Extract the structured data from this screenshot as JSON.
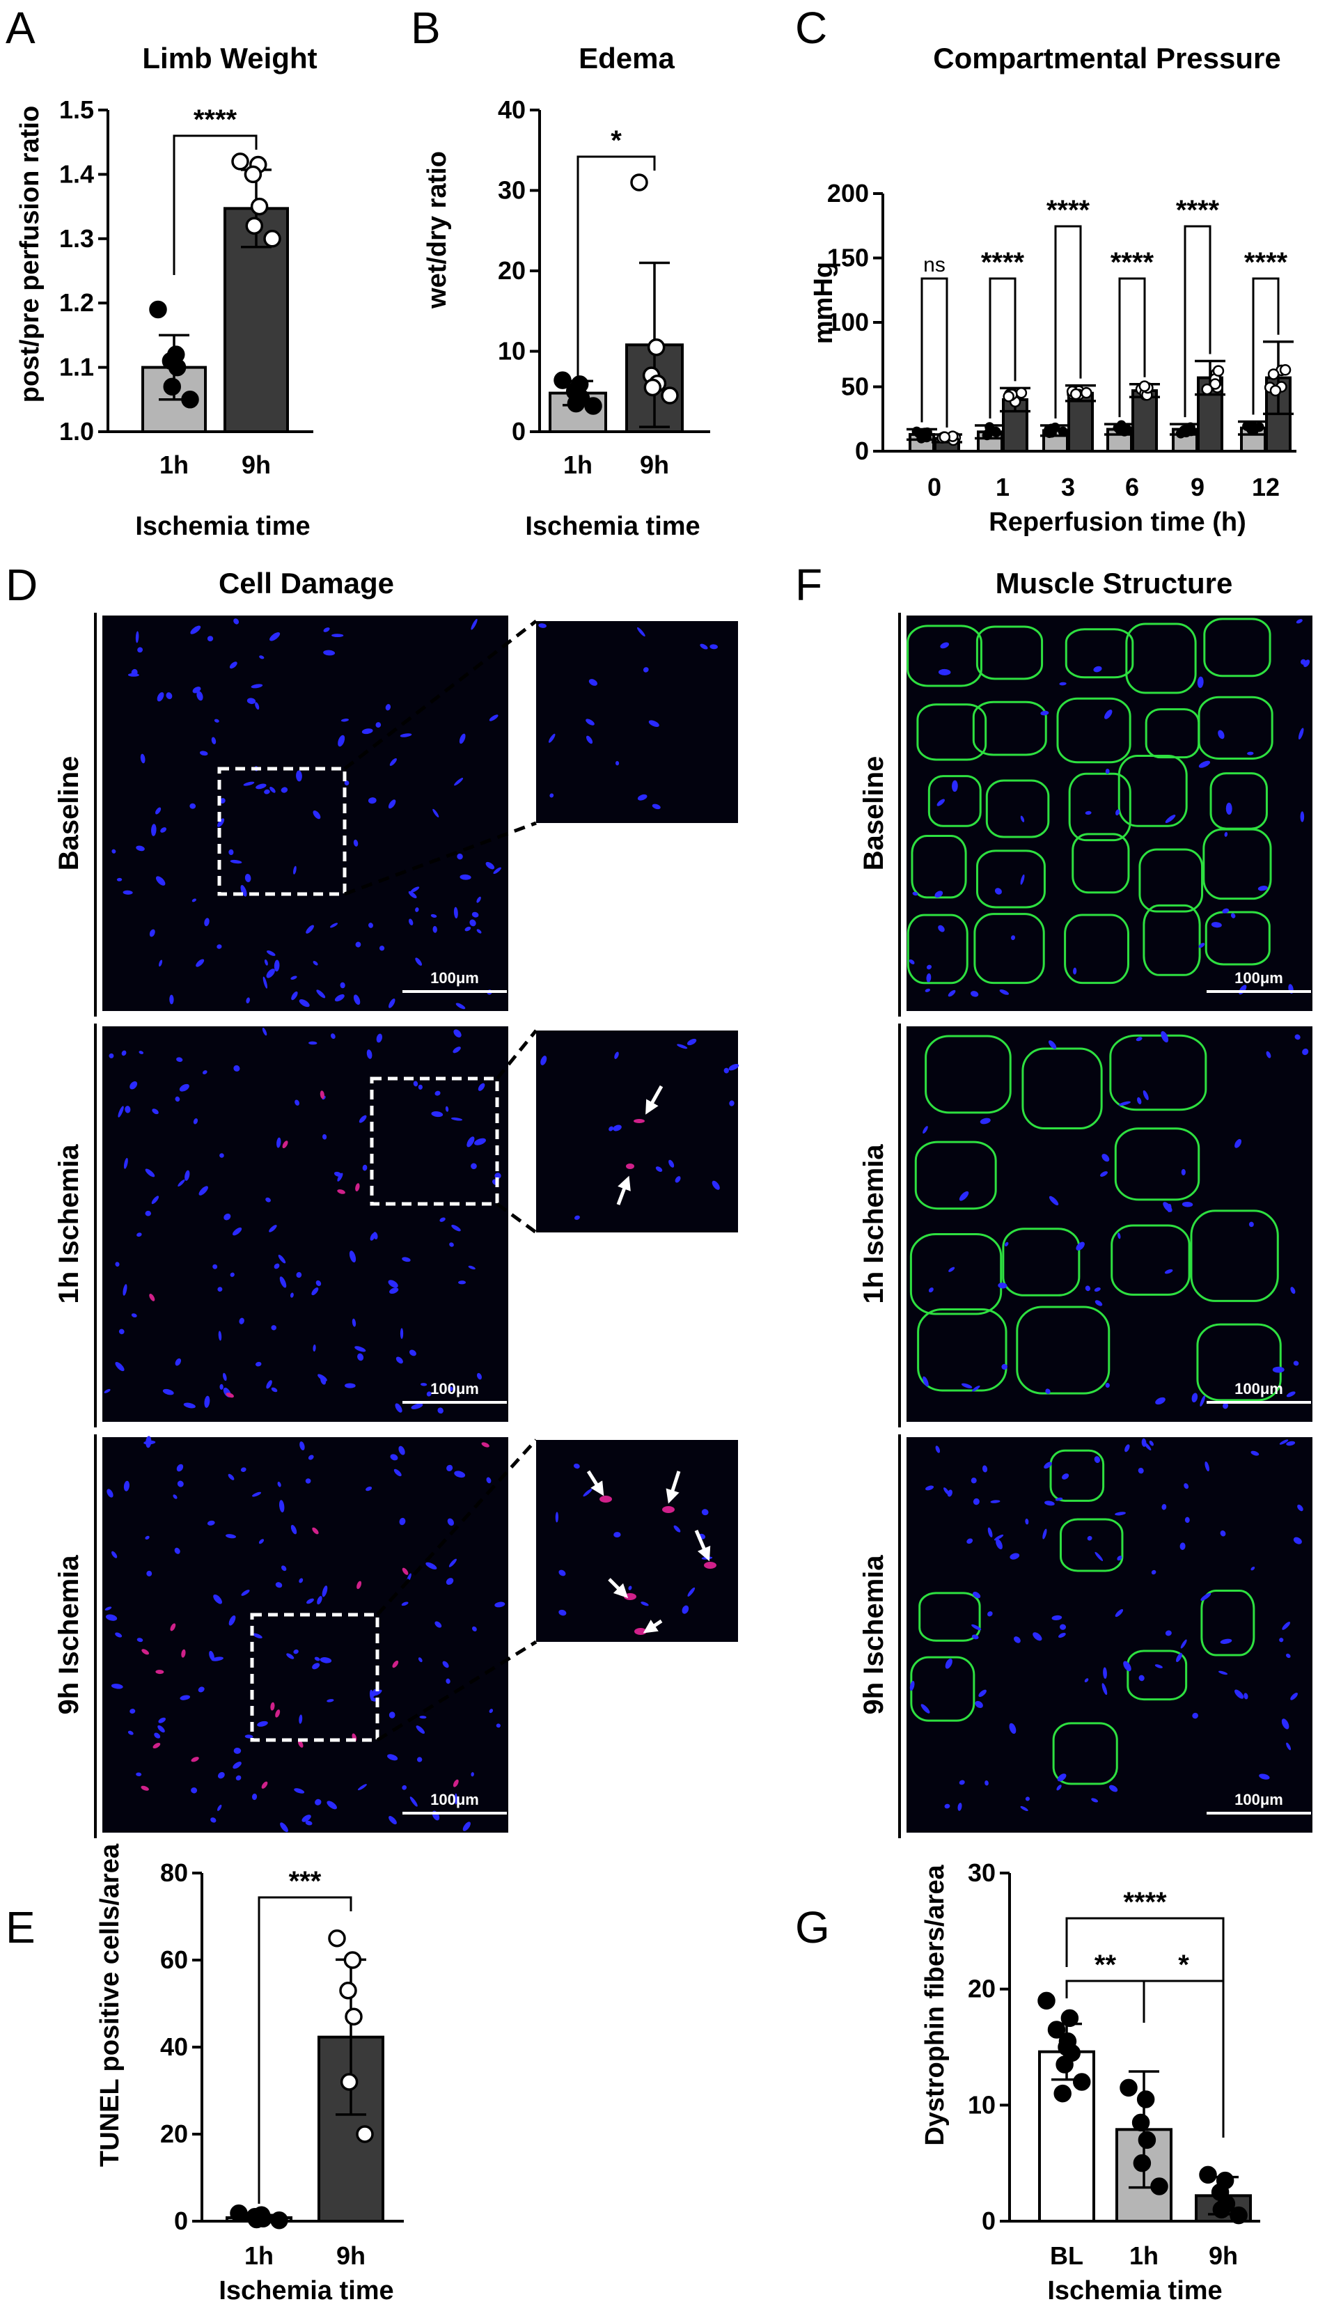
{
  "colors": {
    "light_bar": "#b5b5b5",
    "dark_bar": "#3a3a3a",
    "white_bar": "#ffffff",
    "micro_bg": "#02020e",
    "nuclei": "#2a2aff",
    "tunel": "#d0208a",
    "dystrophin": "#2ee040",
    "arrow": "#ffffff"
  },
  "panels": {
    "A": {
      "letter": "A",
      "title": "Limb Weight",
      "ylabel": "post/pre perfusion ratio",
      "xlabel": "Ischemia time",
      "sig": "****"
    },
    "B": {
      "letter": "B",
      "title": "Edema",
      "ylabel": "wet/dry ratio",
      "xlabel": "Ischemia time",
      "sig": "*"
    },
    "C": {
      "letter": "C",
      "title": "Compartmental Pressure",
      "ylabel": "mmHg",
      "xlabel": "Reperfusion time (h)"
    },
    "D": {
      "letter": "D",
      "title": "Cell Damage",
      "rows": [
        "Baseline",
        "1h Ischemia",
        "9h Ischemia"
      ],
      "scalebar": "100μm"
    },
    "E": {
      "letter": "E",
      "ylabel": "TUNEL positive cells/area",
      "xlabel": "Ischemia time",
      "sig": "***"
    },
    "F": {
      "letter": "F",
      "title": "Muscle Structure",
      "rows": [
        "Baseline",
        "1h Ischemia",
        "9h Ischemia"
      ],
      "scalebar": "100μm"
    },
    "G": {
      "letter": "G",
      "ylabel": "Dystrophin fibers/area",
      "xlabel": "Ischemia time"
    }
  },
  "chart_data": [
    {
      "panel": "A",
      "type": "bar",
      "categories": [
        "1h",
        "9h"
      ],
      "values": [
        1.1,
        1.347
      ],
      "sd": [
        0.05,
        0.06
      ],
      "points": [
        [
          1.19,
          1.12,
          1.11,
          1.1,
          1.07,
          1.05
        ],
        [
          1.42,
          1.415,
          1.4,
          1.35,
          1.32,
          1.3
        ]
      ],
      "ylim": [
        1.0,
        1.5
      ],
      "yticks": [
        1.0,
        1.1,
        1.2,
        1.3,
        1.4,
        1.5
      ],
      "yticklabels": [
        "1.0",
        "1.1",
        "1.2",
        "1.3",
        "1.4",
        "1.5"
      ],
      "title": "Limb Weight",
      "ylabel": "post/pre perfusion ratio",
      "xlabel": "Ischemia time",
      "comparisons": [
        {
          "a": 0,
          "b": 1,
          "label": "****"
        }
      ]
    },
    {
      "panel": "B",
      "type": "bar",
      "categories": [
        "1h",
        "9h"
      ],
      "values": [
        4.8,
        10.8
      ],
      "sd": [
        1.5,
        10.2
      ],
      "points": [
        [
          6.4,
          5.9,
          5.0,
          4.2,
          3.5,
          3.2
        ],
        [
          31.0,
          10.5,
          7.0,
          6.0,
          5.5,
          4.5
        ]
      ],
      "ylim": [
        0,
        40
      ],
      "yticks": [
        0,
        10,
        20,
        30,
        40
      ],
      "yticklabels": [
        "0",
        "10",
        "20",
        "30",
        "40"
      ],
      "title": "Edema",
      "ylabel": "wet/dry ratio",
      "xlabel": "Ischemia time",
      "comparisons": [
        {
          "a": 0,
          "b": 1,
          "label": "*"
        }
      ]
    },
    {
      "panel": "C",
      "type": "bar",
      "categories": [
        "0",
        "1",
        "3",
        "6",
        "9",
        "12"
      ],
      "series": [
        {
          "values": [
            13,
            15,
            16,
            17,
            17,
            18
          ],
          "sd": [
            4,
            5,
            4,
            4,
            4,
            5
          ]
        },
        {
          "values": [
            10,
            40,
            45,
            47,
            57,
            57
          ],
          "sd": [
            3,
            9,
            6,
            5,
            13,
            28
          ]
        }
      ],
      "ylim": [
        0,
        200
      ],
      "yticks": [
        0,
        50,
        100,
        150,
        200
      ],
      "yticklabels": [
        "0",
        "50",
        "100",
        "150",
        "200"
      ],
      "title": "Compartmental Pressure",
      "ylabel": "mmHg",
      "xlabel": "Reperfusion time (h)",
      "comparisons": [
        "ns",
        "****",
        "****",
        "****",
        "****",
        "****"
      ]
    },
    {
      "panel": "E",
      "type": "bar",
      "categories": [
        "1h",
        "9h"
      ],
      "values": [
        0.8,
        42.3
      ],
      "sd": [
        0.6,
        17.8
      ],
      "points": [
        [
          1.8,
          1.4,
          1.0,
          0.6,
          0.4,
          0.2
        ],
        [
          65.0,
          60.0,
          53.0,
          47.0,
          32.0,
          20.0
        ]
      ],
      "ylim": [
        0,
        80
      ],
      "yticks": [
        0,
        20,
        40,
        60,
        80
      ],
      "yticklabels": [
        "0",
        "20",
        "40",
        "60",
        "80"
      ],
      "ylabel": "TUNEL positive cells/area",
      "xlabel": "Ischemia time",
      "comparisons": [
        {
          "a": 0,
          "b": 1,
          "label": "***"
        }
      ]
    },
    {
      "panel": "G",
      "type": "bar",
      "categories": [
        "BL",
        "1h",
        "9h"
      ],
      "values": [
        14.6,
        7.9,
        2.2
      ],
      "sd": [
        2.4,
        5.0,
        1.6
      ],
      "points": [
        [
          19.0,
          17.5,
          16.5,
          15.5,
          15.0,
          14.5,
          13.5,
          12.0,
          11.0
        ],
        [
          11.5,
          10.5,
          8.5,
          7.0,
          5.0,
          3.0
        ],
        [
          4.0,
          3.5,
          2.5,
          1.5,
          1.0,
          0.5
        ]
      ],
      "ylim": [
        0,
        30
      ],
      "yticks": [
        0,
        10,
        20,
        30
      ],
      "yticklabels": [
        "0",
        "10",
        "20",
        "30"
      ],
      "ylabel": "Dystrophin fibers/area",
      "xlabel": "Ischemia time",
      "comparisons": [
        {
          "a": 0,
          "b": 2,
          "label": "****"
        },
        {
          "a": 0,
          "b": 1,
          "label": "**"
        },
        {
          "a": 1,
          "b": 2,
          "label": "*"
        }
      ]
    }
  ]
}
